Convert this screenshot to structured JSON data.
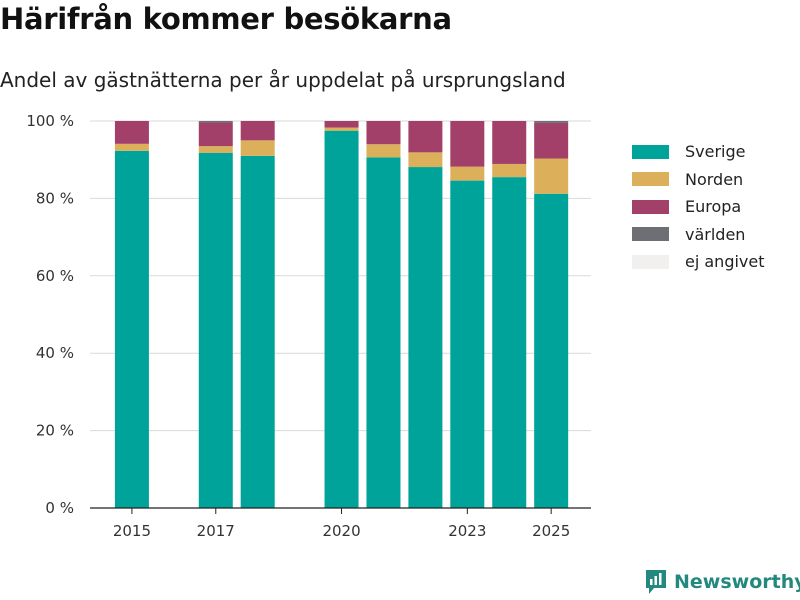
{
  "title": "Härifrån kommer besökarna",
  "subtitle": "Andel av gästnätterna per år uppdelat på ursprungsland",
  "brand": {
    "name": "Newsworthy",
    "icon": "newsworthy-logo-icon"
  },
  "chart_data": {
    "type": "bar",
    "stacked": true,
    "x": [
      2015,
      2017,
      2018,
      2020,
      2021,
      2022,
      2023,
      2024,
      2025
    ],
    "x_ticks": [
      "2015",
      "2017",
      "2020",
      "2023",
      "2025"
    ],
    "y_ticks": [
      "0 %",
      "20 %",
      "40 %",
      "60 %",
      "80 %",
      "100 %"
    ],
    "ylim": [
      0,
      100
    ],
    "grid": true,
    "legend_position": "right",
    "series": [
      {
        "name": "Sverige",
        "color": "#00a399",
        "values": [
          92.3,
          91.8,
          91.0,
          97.5,
          90.6,
          88.1,
          84.6,
          85.5,
          81.2
        ]
      },
      {
        "name": "Norden",
        "color": "#dcb05b",
        "values": [
          1.8,
          1.7,
          4.0,
          0.8,
          3.4,
          3.8,
          3.6,
          3.4,
          9.1
        ]
      },
      {
        "name": "Europa",
        "color": "#a3406a",
        "values": [
          5.9,
          6.1,
          5.0,
          1.7,
          6.0,
          8.1,
          11.8,
          11.1,
          9.2
        ]
      },
      {
        "name": "världen",
        "color": "#6e6e75",
        "values": [
          0,
          0.4,
          0,
          0,
          0,
          0,
          0,
          0,
          0.5
        ]
      },
      {
        "name": "ej angivet",
        "color": "#f1f0ee",
        "values": [
          0,
          0,
          0,
          0,
          0,
          0,
          0,
          0,
          0
        ]
      }
    ]
  }
}
